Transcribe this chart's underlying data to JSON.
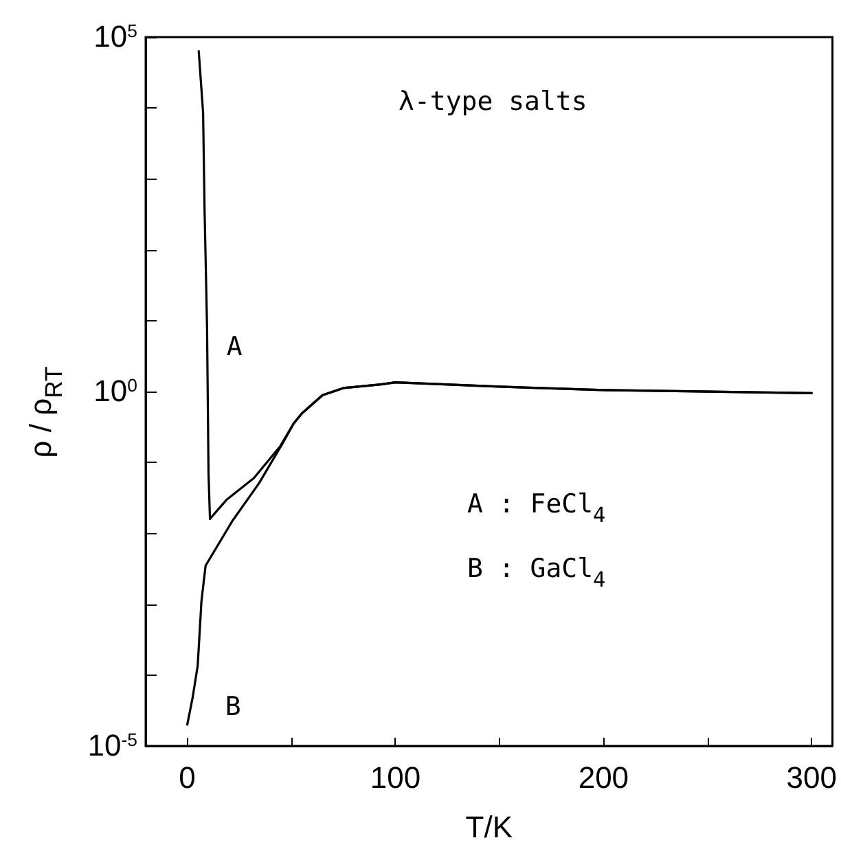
{
  "chart_data": {
    "type": "line",
    "xlabel": "T/K",
    "ylabel": "ρ / ρ$_{RT}$",
    "log": "y",
    "grid": false,
    "legend": false,
    "marker": "none",
    "line_style": "solid",
    "xlim": [
      -20,
      310
    ],
    "xticks": [
      0,
      {
        "value": 50,
        "label": null
      },
      100,
      {
        "value": 150,
        "label": null
      },
      200,
      {
        "value": 250,
        "label": null
      },
      300
    ],
    "ylim": [
      1e-05,
      100000
    ],
    "yticks": [
      {
        "value": 1e-05,
        "label": "10$^{-5}$"
      },
      {
        "value": 0.0001,
        "label": null
      },
      {
        "value": 0.001,
        "label": null
      },
      {
        "value": 0.01,
        "label": null
      },
      {
        "value": 0.1,
        "label": null
      },
      {
        "value": 1,
        "label": "10$^{0}$"
      },
      {
        "value": 10,
        "label": null
      },
      {
        "value": 100,
        "label": null
      },
      {
        "value": 1000,
        "label": null
      },
      {
        "value": 10000,
        "label": null
      },
      {
        "value": 100000,
        "label": "10$^{5}$"
      }
    ],
    "annotations": [
      "λ-type salts",
      "A : FeCl$_{4}$",
      "B : GaCl$_{4}$"
    ],
    "series": [
      {
        "name": "A",
        "color": "#000000",
        "x": [
          5.5,
          7.6,
          8.3,
          9.5,
          10.2,
          10.9,
          19,
          32,
          44.7,
          51,
          55,
          65,
          75,
          93,
          100,
          150,
          200,
          300
        ],
        "values": [
          63000,
          8500,
          370,
          8,
          0.07,
          0.016,
          0.03,
          0.06,
          0.17,
          0.35,
          0.49,
          0.89,
          1.12,
          1.26,
          1.35,
          1.17,
          1.05,
          0.95
        ]
      },
      {
        "name": "B",
        "color": "#000000",
        "x": [
          0,
          2.5,
          5,
          6.8,
          8.8,
          21.7,
          34.5,
          46,
          51,
          55,
          65,
          75,
          93,
          100,
          150,
          200,
          300
        ],
        "values": [
          2e-05,
          4.7e-05,
          0.000135,
          0.0011,
          0.0035,
          0.015,
          0.051,
          0.19,
          0.35,
          0.49,
          0.89,
          1.12,
          1.26,
          1.35,
          1.17,
          1.05,
          0.95
        ]
      }
    ]
  }
}
